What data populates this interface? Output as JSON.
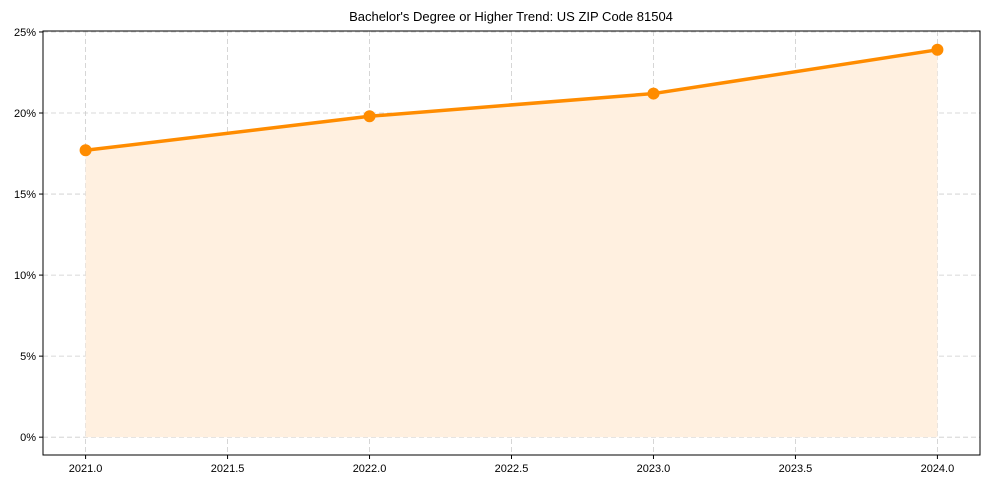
{
  "chart_data": {
    "type": "line",
    "title": "Bachelor's Degree or Higher Trend: US ZIP Code 81504",
    "xlabel": "",
    "ylabel": "",
    "x": [
      2021,
      2022,
      2023,
      2024
    ],
    "series": [
      {
        "name": "Bachelor's Degree or Higher",
        "values": [
          17.7,
          19.8,
          21.2,
          23.9
        ],
        "color": "#ff8c00",
        "fill_color": "#fff0e0"
      }
    ],
    "xlim": [
      2020.85,
      2024.15
    ],
    "ylim": [
      -1.1,
      25.06
    ],
    "xticks": [
      2021.0,
      2021.5,
      2022.0,
      2022.5,
      2023.0,
      2023.5,
      2024.0
    ],
    "xtick_labels": [
      "2021.0",
      "2021.5",
      "2022.0",
      "2022.5",
      "2023.0",
      "2023.5",
      "2024.0"
    ],
    "yticks": [
      0,
      5,
      10,
      15,
      20,
      25
    ],
    "ytick_labels": [
      "0%",
      "5%",
      "10%",
      "15%",
      "20%",
      "25%"
    ],
    "grid": true,
    "legend": "none"
  }
}
